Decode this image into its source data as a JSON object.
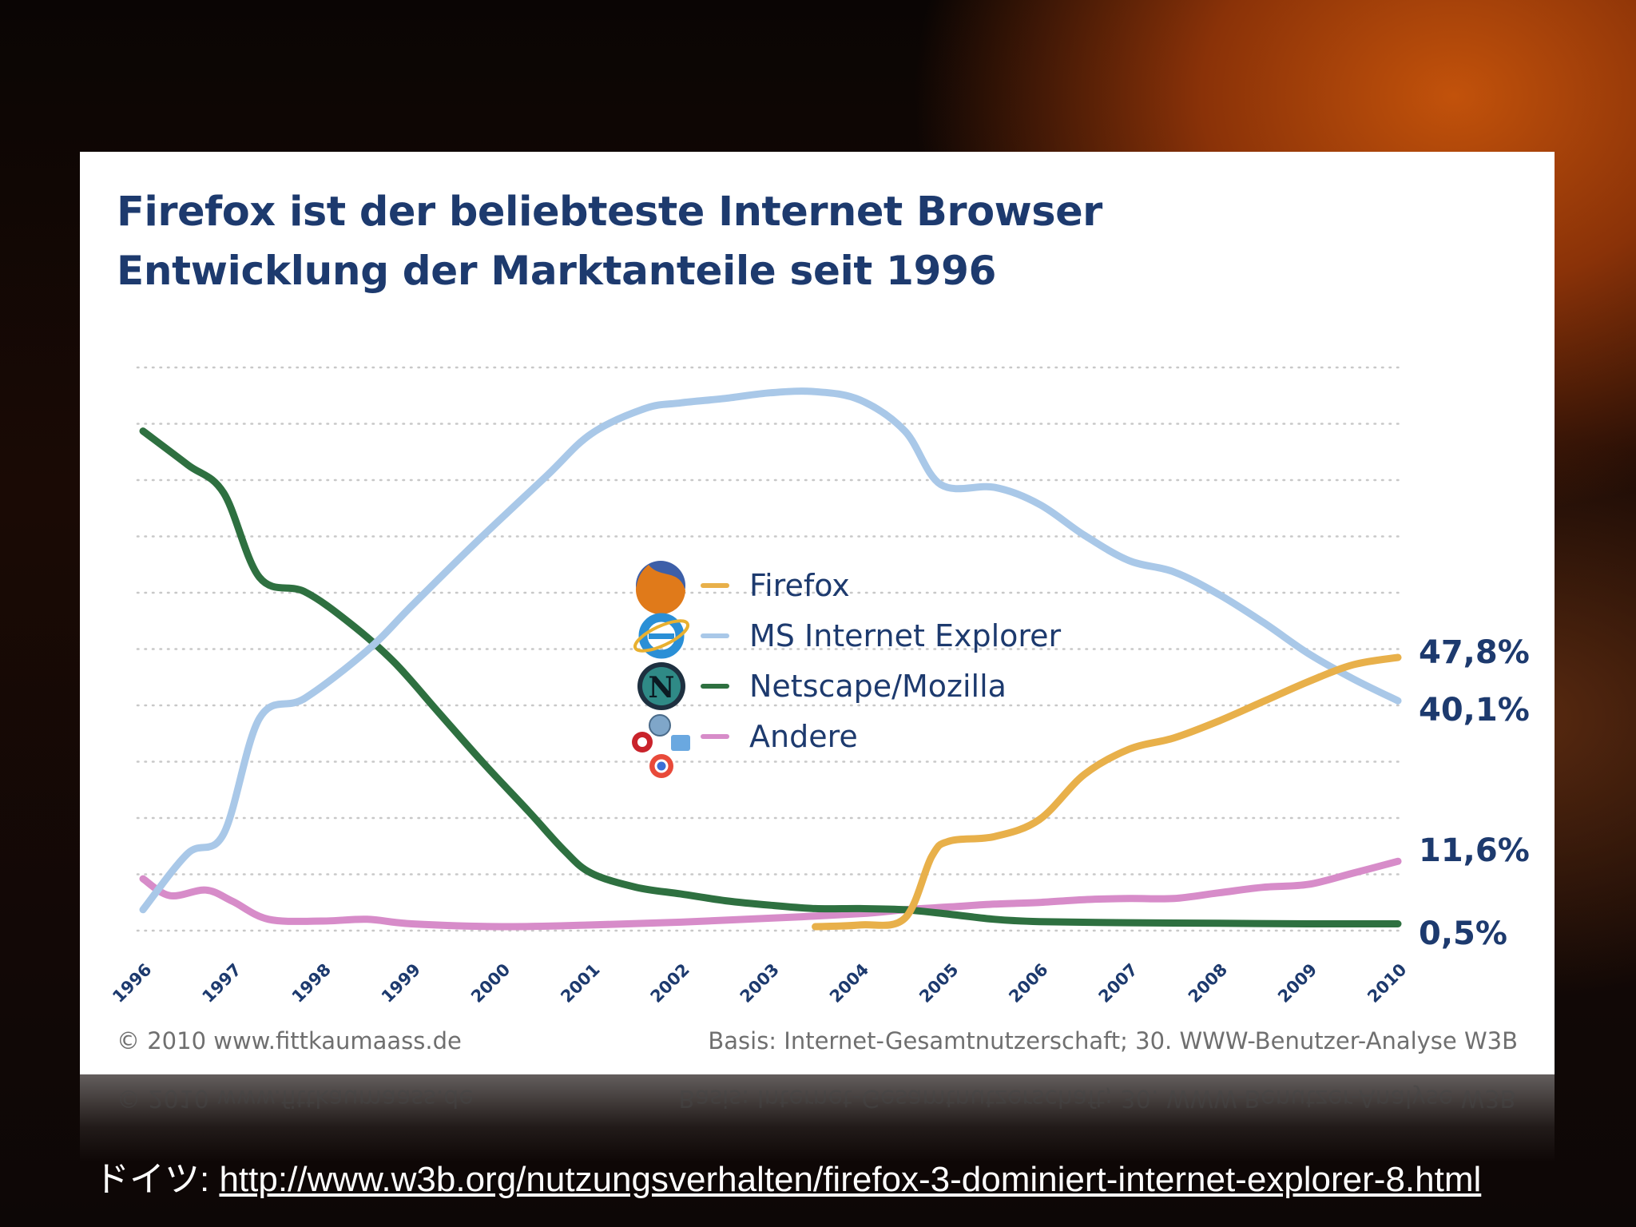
{
  "slide": {
    "source_prefix": "ドイツ: ",
    "source_url": "http://www.w3b.org/nutzungsverhalten/firefox-3-dominiert-internet-explorer-8.html"
  },
  "chart_data": {
    "type": "line",
    "title": "Firefox ist der beliebteste Internet Browser",
    "subtitle": "Entwicklung der Marktanteile seit 1996",
    "xlabel": "",
    "ylabel": "",
    "x": [
      "1996",
      "1997",
      "1998",
      "1999",
      "2000",
      "2001",
      "2002",
      "2003",
      "2004",
      "2005",
      "2006",
      "2007",
      "2008",
      "2009",
      "2010"
    ],
    "xlim": [
      1996,
      2010
    ],
    "ylim": [
      0,
      100
    ],
    "grid": true,
    "legend_position": "center",
    "series": [
      {
        "name": "Firefox",
        "color": "#e8b04a",
        "icon": "firefox-logo",
        "points": [
          [
            2003.5,
            0.0
          ],
          [
            2004.0,
            0.3
          ],
          [
            2004.5,
            1.5
          ],
          [
            2004.8,
            12.5
          ],
          [
            2005.0,
            15.2
          ],
          [
            2005.5,
            16.0
          ],
          [
            2006.0,
            19.0
          ],
          [
            2006.5,
            27.0
          ],
          [
            2007.0,
            31.5
          ],
          [
            2007.5,
            33.5
          ],
          [
            2008.0,
            36.5
          ],
          [
            2008.5,
            40.0
          ],
          [
            2009.0,
            43.5
          ],
          [
            2009.5,
            46.5
          ],
          [
            2010.0,
            47.8
          ]
        ],
        "end_label": "47,8%"
      },
      {
        "name": "MS Internet Explorer",
        "color": "#a9c8e8",
        "icon": "internet-explorer-logo",
        "points": [
          [
            1996.0,
            3.0
          ],
          [
            1996.5,
            13.0
          ],
          [
            1996.9,
            16.5
          ],
          [
            1997.3,
            37.0
          ],
          [
            1997.8,
            40.5
          ],
          [
            1998.5,
            49.0
          ],
          [
            1999.0,
            57.0
          ],
          [
            1999.7,
            68.0
          ],
          [
            2000.5,
            80.0
          ],
          [
            2001.0,
            87.5
          ],
          [
            2001.6,
            92.0
          ],
          [
            2002.0,
            93.0
          ],
          [
            2002.5,
            93.8
          ],
          [
            2003.0,
            94.8
          ],
          [
            2003.5,
            95.0
          ],
          [
            2004.0,
            93.5
          ],
          [
            2004.5,
            88.0
          ],
          [
            2004.9,
            78.5
          ],
          [
            2005.5,
            78.0
          ],
          [
            2006.0,
            75.0
          ],
          [
            2006.5,
            69.5
          ],
          [
            2007.0,
            65.0
          ],
          [
            2007.5,
            63.0
          ],
          [
            2008.0,
            59.0
          ],
          [
            2008.5,
            54.0
          ],
          [
            2009.0,
            48.5
          ],
          [
            2009.5,
            44.0
          ],
          [
            2010.0,
            40.1
          ]
        ],
        "end_label": "40,1%"
      },
      {
        "name": "Netscape/Mozilla",
        "color": "#2e7040",
        "icon": "netscape-logo",
        "points": [
          [
            1996.0,
            88.0
          ],
          [
            1996.5,
            82.0
          ],
          [
            1996.9,
            77.0
          ],
          [
            1997.3,
            62.0
          ],
          [
            1997.8,
            59.5
          ],
          [
            1998.3,
            54.0
          ],
          [
            1998.8,
            47.0
          ],
          [
            1999.3,
            38.0
          ],
          [
            1999.8,
            29.0
          ],
          [
            2000.3,
            20.5
          ],
          [
            2000.7,
            13.5
          ],
          [
            2001.0,
            9.5
          ],
          [
            2001.5,
            7.0
          ],
          [
            2002.0,
            5.8
          ],
          [
            2002.5,
            4.6
          ],
          [
            2003.0,
            3.8
          ],
          [
            2003.5,
            3.2
          ],
          [
            2004.0,
            3.2
          ],
          [
            2004.5,
            3.0
          ],
          [
            2005.0,
            2.2
          ],
          [
            2005.5,
            1.3
          ],
          [
            2006.0,
            0.9
          ],
          [
            2007.0,
            0.7
          ],
          [
            2008.0,
            0.6
          ],
          [
            2009.0,
            0.5
          ],
          [
            2010.0,
            0.5
          ]
        ],
        "end_label": "0,5%"
      },
      {
        "name": "Andere",
        "color": "#d78cc9",
        "icon": "other-browsers-logos",
        "points": [
          [
            1996.0,
            8.5
          ],
          [
            1996.3,
            5.5
          ],
          [
            1996.7,
            6.5
          ],
          [
            1997.0,
            4.5
          ],
          [
            1997.4,
            1.3
          ],
          [
            1998.0,
            1.0
          ],
          [
            1998.5,
            1.3
          ],
          [
            1999.0,
            0.5
          ],
          [
            2000.0,
            0.0
          ],
          [
            2001.0,
            0.3
          ],
          [
            2002.0,
            0.8
          ],
          [
            2003.0,
            1.5
          ],
          [
            2004.0,
            2.3
          ],
          [
            2004.5,
            3.0
          ],
          [
            2005.0,
            3.5
          ],
          [
            2005.5,
            4.0
          ],
          [
            2006.0,
            4.3
          ],
          [
            2006.5,
            4.8
          ],
          [
            2007.0,
            5.0
          ],
          [
            2007.5,
            5.0
          ],
          [
            2008.0,
            6.0
          ],
          [
            2008.5,
            7.0
          ],
          [
            2009.0,
            7.5
          ],
          [
            2009.5,
            9.5
          ],
          [
            2010.0,
            11.6
          ]
        ],
        "end_label": "11,6%"
      }
    ],
    "footer_left": "© 2010 www.fittkaumaass.de",
    "footer_right": "Basis: Internet-Gesamtnutzerschaft; 30. WWW-Benutzer-Analyse W3B"
  }
}
